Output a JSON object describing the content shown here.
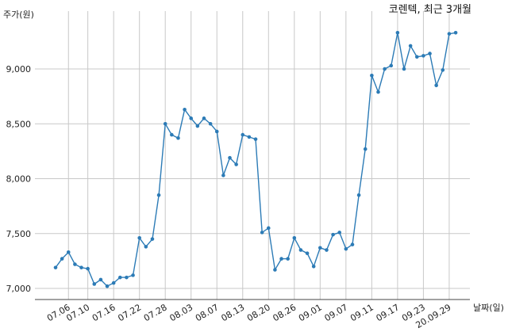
{
  "chart_data": {
    "type": "line",
    "title": "코렌텍, 최근 3개월",
    "ylabel": "주가(원)",
    "xlabel": "날짜(일)",
    "ylim": [
      6900,
      9400
    ],
    "yticks": [
      7000,
      7500,
      8000,
      8500,
      9000
    ],
    "ytick_labels": [
      "7,000",
      "7,500",
      "8,000",
      "8,500",
      "9,000"
    ],
    "xtick_labels": [
      "07.06",
      "07.10",
      "07.16",
      "07.22",
      "07.28",
      "08.03",
      "08.07",
      "08.13",
      "08.20",
      "08.26",
      "09.01",
      "09.07",
      "09.11",
      "09.17",
      "09.23",
      "20.09.29"
    ],
    "xtick_indices": [
      2,
      5,
      9,
      13,
      17,
      21,
      25,
      29,
      33,
      37,
      41,
      45,
      49,
      53,
      57,
      61
    ],
    "grid": true,
    "color": "#2c7bb6",
    "series": [
      {
        "values": [
          7190,
          7270,
          7330,
          7220,
          7190,
          7180,
          7040,
          7080,
          7020,
          7050,
          7100,
          7100,
          7120,
          7460,
          7380,
          7450,
          7850,
          8500,
          8400,
          8370,
          8630,
          8550,
          8480,
          8550,
          8500,
          8430,
          8030,
          8190,
          8130,
          8400,
          8380,
          8360,
          7510,
          7550,
          7170,
          7270,
          7270,
          7460,
          7350,
          7320,
          7200,
          7370,
          7350,
          7490,
          7510,
          7360,
          7400,
          7850,
          8270,
          8940,
          8790,
          9000,
          9030,
          9330,
          9000,
          9210,
          9110,
          9120,
          9140,
          8850,
          8990,
          9320,
          9330
        ]
      }
    ]
  }
}
